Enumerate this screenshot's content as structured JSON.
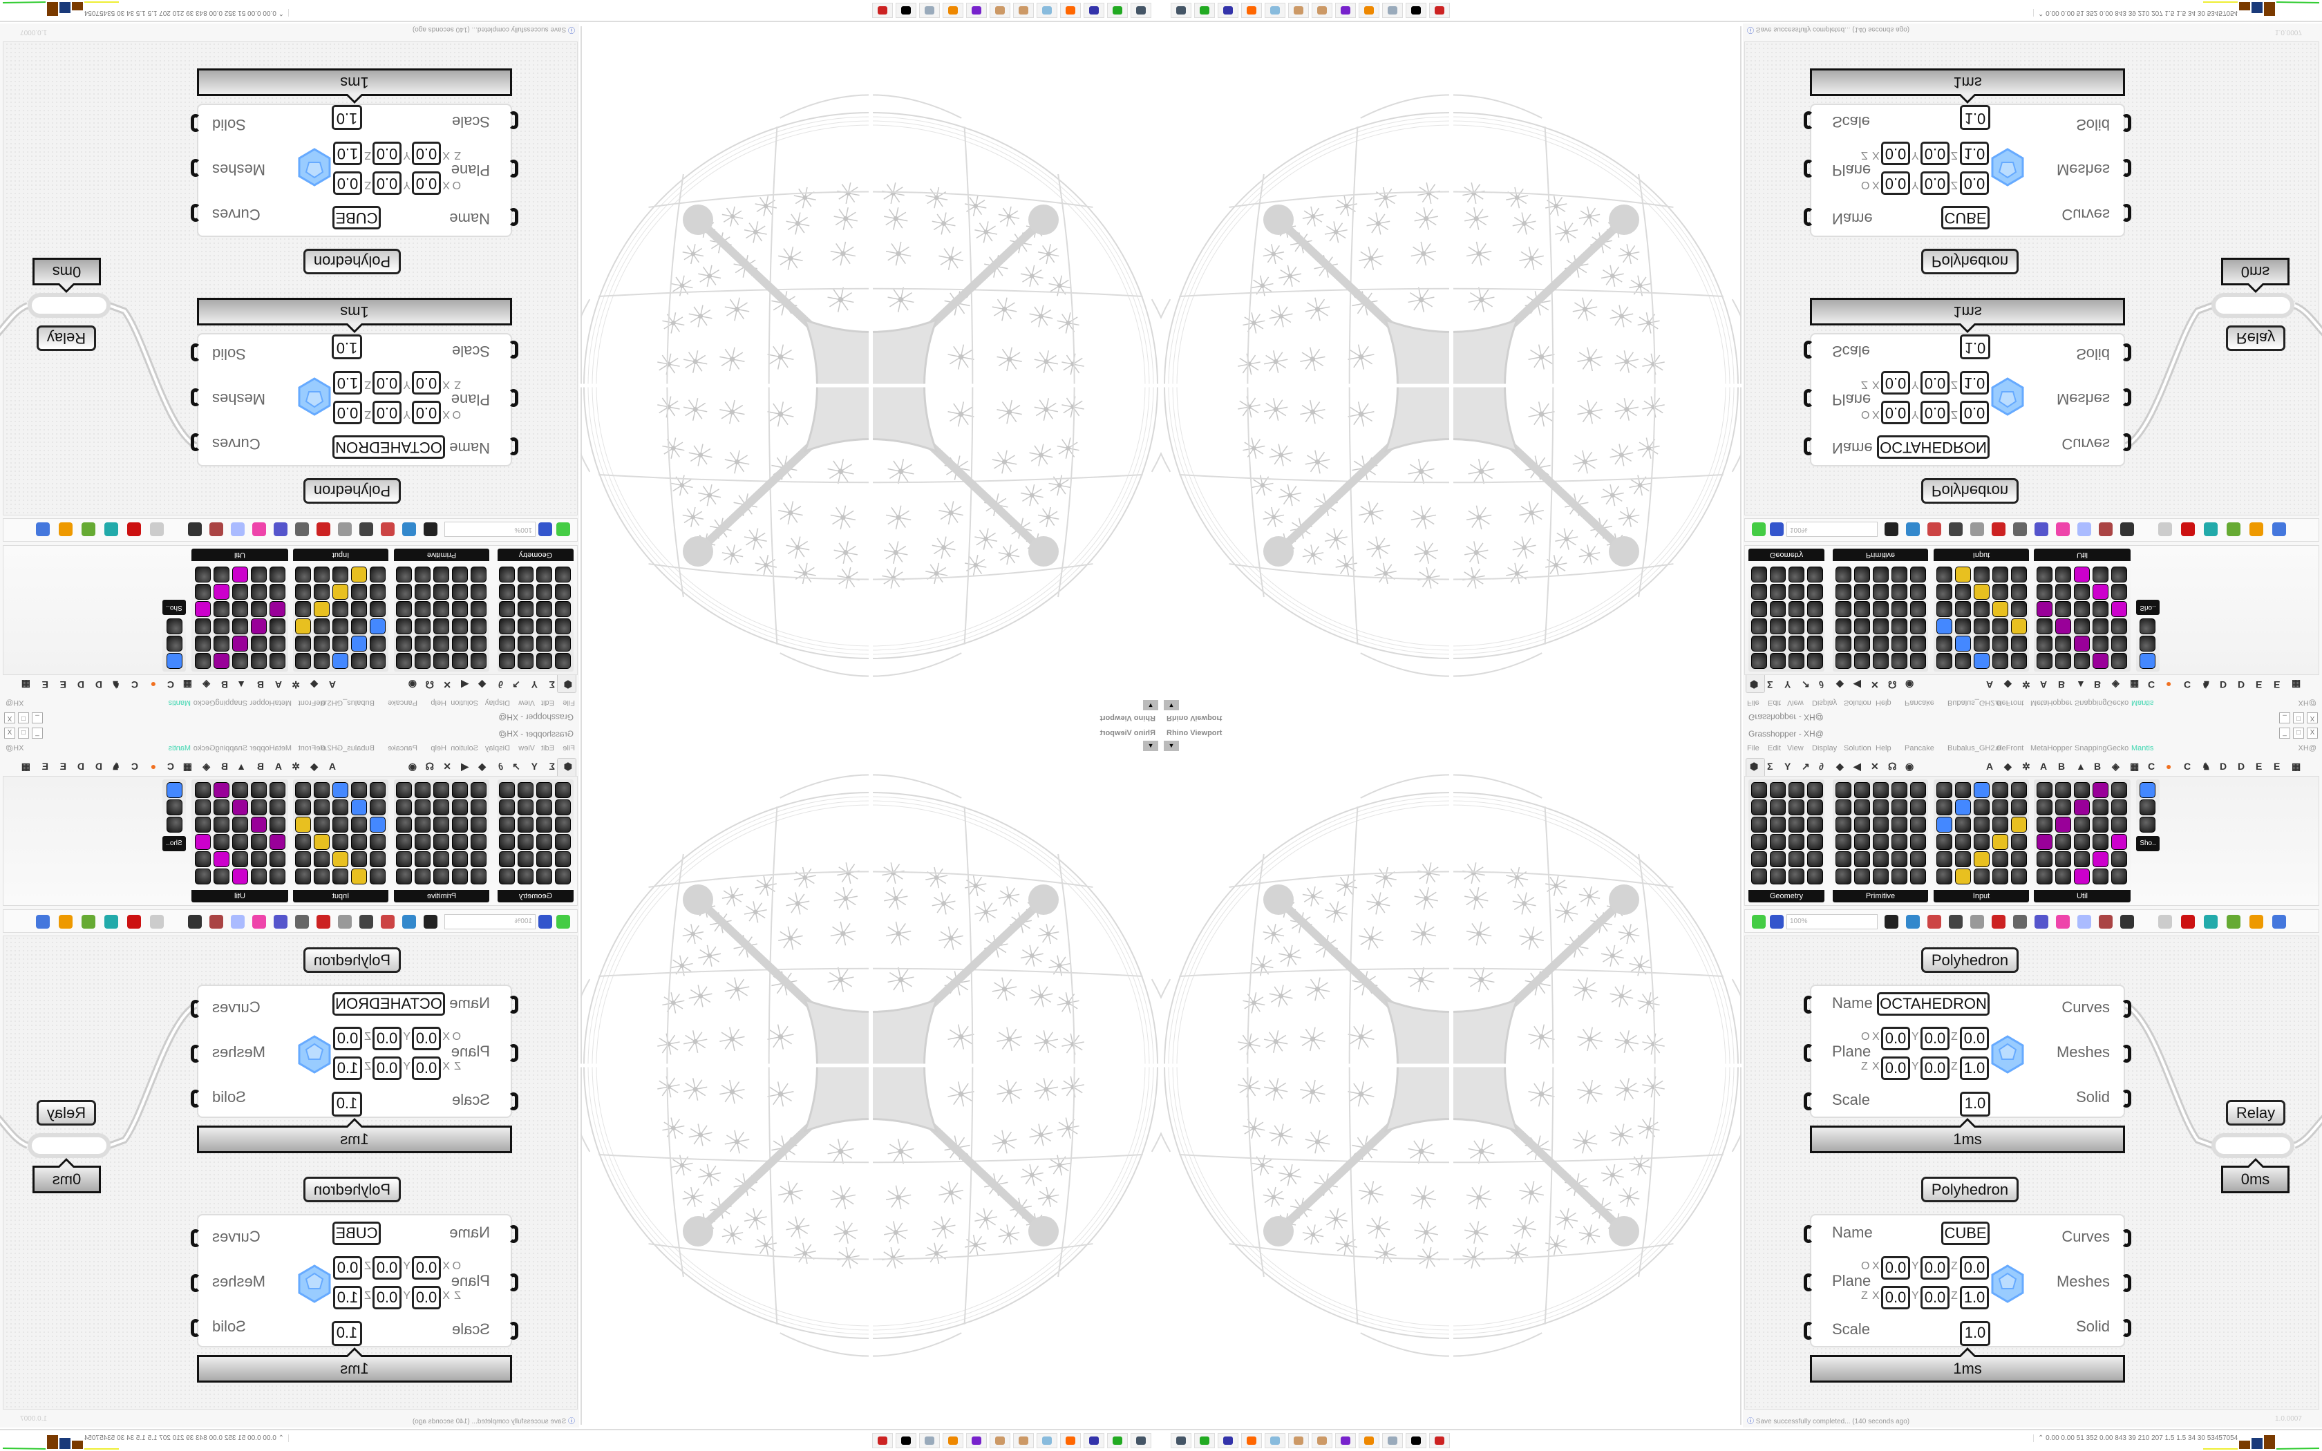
{
  "viewport": {
    "title": "Rhino Viewport",
    "dropdown_icon": "caret-down-icon"
  },
  "gh": {
    "title": "Grasshopper - XH@",
    "window_buttons": [
      "_",
      "□",
      "X"
    ],
    "menu": [
      "File",
      "Edit",
      "View",
      "Display",
      "Solution",
      "Help",
      "Pancake",
      "Bubalus_GH2.0",
      "eleFront",
      "MetaHopper",
      "SnappingGecko",
      "Mantis"
    ],
    "menu_right": "XH@",
    "active_menu_color": "#3fd6b0",
    "tab_icons": [
      "⬢",
      "Σ",
      "Y",
      "↗",
      "∂",
      "◆",
      "◀",
      "✕",
      "☊",
      "◉"
    ],
    "tab_letters": [
      "A",
      "◆",
      "✲",
      "A",
      "B",
      "▲",
      "B",
      "◈",
      "▦",
      "C",
      "●",
      "C",
      "♞",
      "D",
      "D",
      "E",
      "E",
      "▦"
    ],
    "panels": [
      {
        "label": "Geometry",
        "cols": 4,
        "rows": 6
      },
      {
        "label": "Primitive",
        "cols": 5,
        "rows": 6
      },
      {
        "label": "Input",
        "cols": 5,
        "rows": 6
      },
      {
        "label": "Util",
        "cols": 5,
        "rows": 6
      },
      {
        "label": "Sho..",
        "cols": 1,
        "rows": 3
      }
    ],
    "zoom": "100%",
    "status": "Save successfully completed... (140 seconds ago)",
    "version": "1.0.0007"
  },
  "components": [
    {
      "nickname": "Polyhedron",
      "inputs": [
        "Name",
        "Plane",
        "Scale"
      ],
      "outputs": [
        "Curves",
        "Meshes",
        "Solid"
      ],
      "name_value": "OCTAHEDRON",
      "origin": [
        "0.0",
        "0.0",
        "0.0"
      ],
      "zaxis": [
        "0.0",
        "0.0",
        "1.0"
      ],
      "scale": "1.0",
      "time": "1ms",
      "plane_labels": [
        "O",
        "Z",
        "X",
        "Y",
        "Z"
      ]
    },
    {
      "nickname": "Polyhedron",
      "inputs": [
        "Name",
        "Plane",
        "Scale"
      ],
      "outputs": [
        "Curves",
        "Meshes",
        "Solid"
      ],
      "name_value": "CUBE",
      "origin": [
        "0.0",
        "0.0",
        "0.0"
      ],
      "zaxis": [
        "0.0",
        "0.0",
        "1.0"
      ],
      "scale": "1.0",
      "time": "1ms",
      "plane_labels": [
        "O",
        "Z",
        "X",
        "Y",
        "Z"
      ]
    }
  ],
  "relay": {
    "label": "Relay",
    "time": "0ms"
  },
  "taskbar": {
    "icons": [
      "remote-desktop-icon",
      "device-manager-icon",
      "floppy-64-icon",
      "firefox-icon",
      "calculator-icon",
      "paint-icon",
      "paint-icon",
      "chat-app-icon",
      "blender-icon",
      "notepad-icon",
      "rhino-icon",
      "gear-app-icon"
    ]
  },
  "perf": {
    "values": "0.00 0.00  51  352 0.00 843  39  210  207  1.5  1.5  34  30 53457054"
  }
}
